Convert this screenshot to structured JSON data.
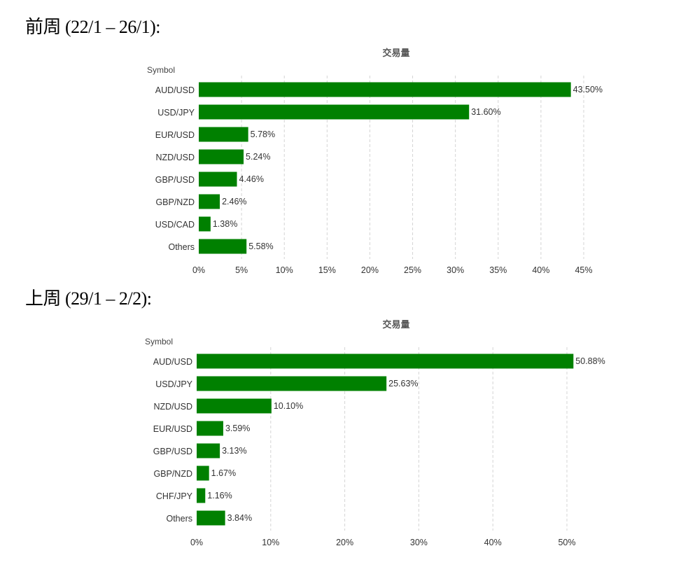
{
  "sections": [
    {
      "heading": "前周 (22/1 – 26/1):"
    },
    {
      "heading": "上周 (29/1 – 2/2):"
    }
  ],
  "chart_data": [
    {
      "type": "bar",
      "orientation": "horizontal",
      "title": "交易量",
      "ylabel": "Symbol",
      "categories": [
        "AUD/USD",
        "USD/JPY",
        "EUR/USD",
        "NZD/USD",
        "GBP/USD",
        "GBP/NZD",
        "USD/CAD",
        "Others"
      ],
      "values": [
        43.5,
        31.6,
        5.78,
        5.24,
        4.46,
        2.46,
        1.38,
        5.58
      ],
      "value_labels": [
        "43.50%",
        "31.60%",
        "5.78%",
        "5.24%",
        "4.46%",
        "2.46%",
        "1.38%",
        "5.58%"
      ],
      "xlim": [
        0,
        45
      ],
      "xticks": [
        0,
        5,
        10,
        15,
        20,
        25,
        30,
        35,
        40,
        45
      ],
      "xtick_labels": [
        "0%",
        "5%",
        "10%",
        "15%",
        "20%",
        "25%",
        "30%",
        "35%",
        "40%",
        "45%"
      ],
      "bar_color": "#008000",
      "grid": "vertical dashed"
    },
    {
      "type": "bar",
      "orientation": "horizontal",
      "title": "交易量",
      "ylabel": "Symbol",
      "categories": [
        "AUD/USD",
        "USD/JPY",
        "NZD/USD",
        "EUR/USD",
        "GBP/USD",
        "GBP/NZD",
        "CHF/JPY",
        "Others"
      ],
      "values": [
        50.88,
        25.63,
        10.1,
        3.59,
        3.13,
        1.67,
        1.16,
        3.84
      ],
      "value_labels": [
        "50.88%",
        "25.63%",
        "10.10%",
        "3.59%",
        "3.13%",
        "1.67%",
        "1.16%",
        "3.84%"
      ],
      "xlim": [
        0,
        50
      ],
      "xticks": [
        0,
        10,
        20,
        30,
        40,
        50
      ],
      "xtick_labels": [
        "0%",
        "10%",
        "20%",
        "30%",
        "40%",
        "50%"
      ],
      "bar_color": "#008000",
      "grid": "vertical dashed"
    }
  ]
}
